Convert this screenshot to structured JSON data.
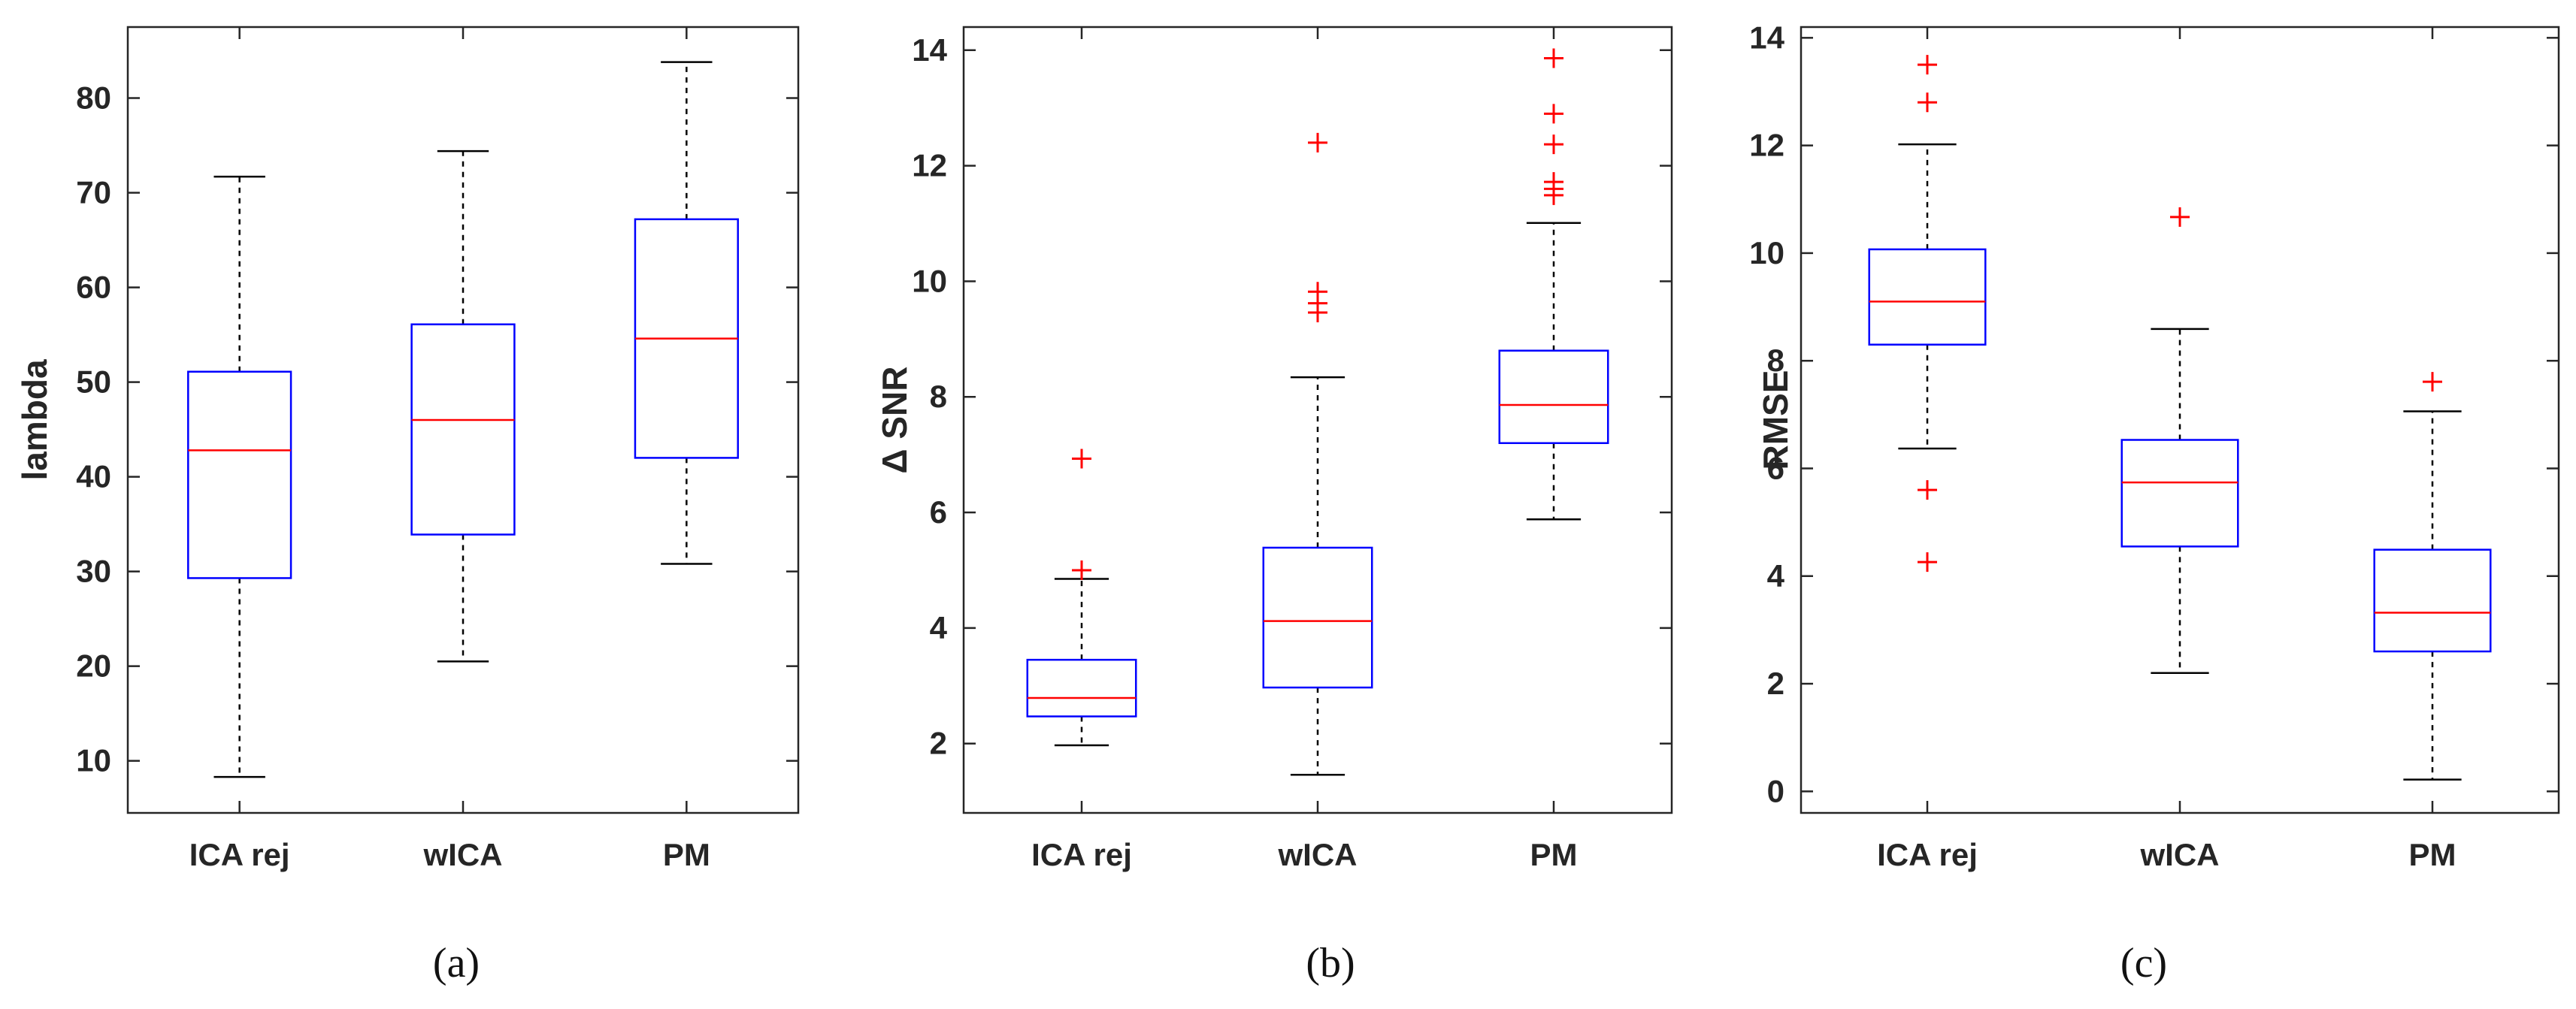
{
  "colors": {
    "box": "#0000ff",
    "median": "#ff0000",
    "outlier": "#ff0000",
    "whisker": "#000000",
    "axis": "#262626"
  },
  "chart_data": [
    {
      "type": "box",
      "caption": "(a)",
      "ylabel": "lambda",
      "categories": [
        "ICA rej",
        "wICA",
        "PM"
      ],
      "ylim": [
        4.5,
        87.5
      ],
      "yticks": [
        10,
        20,
        30,
        40,
        50,
        60,
        70,
        80
      ],
      "ytick_labels": [
        "10",
        "20",
        "30",
        "40",
        "50",
        "60",
        "70",
        "80"
      ],
      "boxes": [
        {
          "whisker_low": 8.3,
          "q1": 29.3,
          "median": 42.8,
          "q3": 51.1,
          "whisker_high": 71.7,
          "outliers": []
        },
        {
          "whisker_low": 20.5,
          "q1": 33.9,
          "median": 46.0,
          "q3": 56.1,
          "whisker_high": 74.4,
          "outliers": []
        },
        {
          "whisker_low": 30.8,
          "q1": 42.0,
          "median": 54.6,
          "q3": 67.2,
          "whisker_high": 83.8,
          "outliers": []
        }
      ]
    },
    {
      "type": "box",
      "caption": "(b)",
      "ylabel": "Δ SNR",
      "categories": [
        "ICA rej",
        "wICA",
        "PM"
      ],
      "ylim": [
        0.8,
        14.4
      ],
      "yticks": [
        2,
        4,
        6,
        8,
        10,
        12,
        14
      ],
      "ytick_labels": [
        "2",
        "4",
        "6",
        "8",
        "10",
        "12",
        "14"
      ],
      "boxes": [
        {
          "whisker_low": 1.97,
          "q1": 2.47,
          "median": 2.79,
          "q3": 3.45,
          "whisker_high": 4.85,
          "outliers": [
            5.0,
            6.93
          ]
        },
        {
          "whisker_low": 1.46,
          "q1": 2.97,
          "median": 4.12,
          "q3": 5.39,
          "whisker_high": 8.34,
          "outliers": [
            9.46,
            9.62,
            9.82,
            12.4
          ]
        },
        {
          "whisker_low": 5.88,
          "q1": 7.2,
          "median": 7.86,
          "q3": 8.8,
          "whisker_high": 11.01,
          "outliers": [
            11.49,
            11.6,
            11.72,
            12.37,
            12.9,
            13.86
          ]
        }
      ]
    },
    {
      "type": "box",
      "caption": "(c)",
      "ylabel": "RMSE",
      "categories": [
        "ICA rej",
        "wICA",
        "PM"
      ],
      "ylim": [
        -0.4,
        14.2
      ],
      "yticks": [
        0,
        2,
        4,
        6,
        8,
        10,
        12,
        14
      ],
      "ytick_labels": [
        "0",
        "2",
        "4",
        "6",
        "8",
        "10",
        "12",
        "14"
      ],
      "boxes": [
        {
          "whisker_low": 6.37,
          "q1": 8.3,
          "median": 9.1,
          "q3": 10.07,
          "whisker_high": 12.02,
          "outliers": [
            4.26,
            5.6,
            12.8,
            13.5
          ]
        },
        {
          "whisker_low": 2.2,
          "q1": 4.55,
          "median": 5.74,
          "q3": 6.53,
          "whisker_high": 8.59,
          "outliers": [
            10.67
          ]
        },
        {
          "whisker_low": 0.22,
          "q1": 2.6,
          "median": 3.32,
          "q3": 4.49,
          "whisker_high": 7.06,
          "outliers": [
            7.61
          ]
        }
      ]
    }
  ]
}
